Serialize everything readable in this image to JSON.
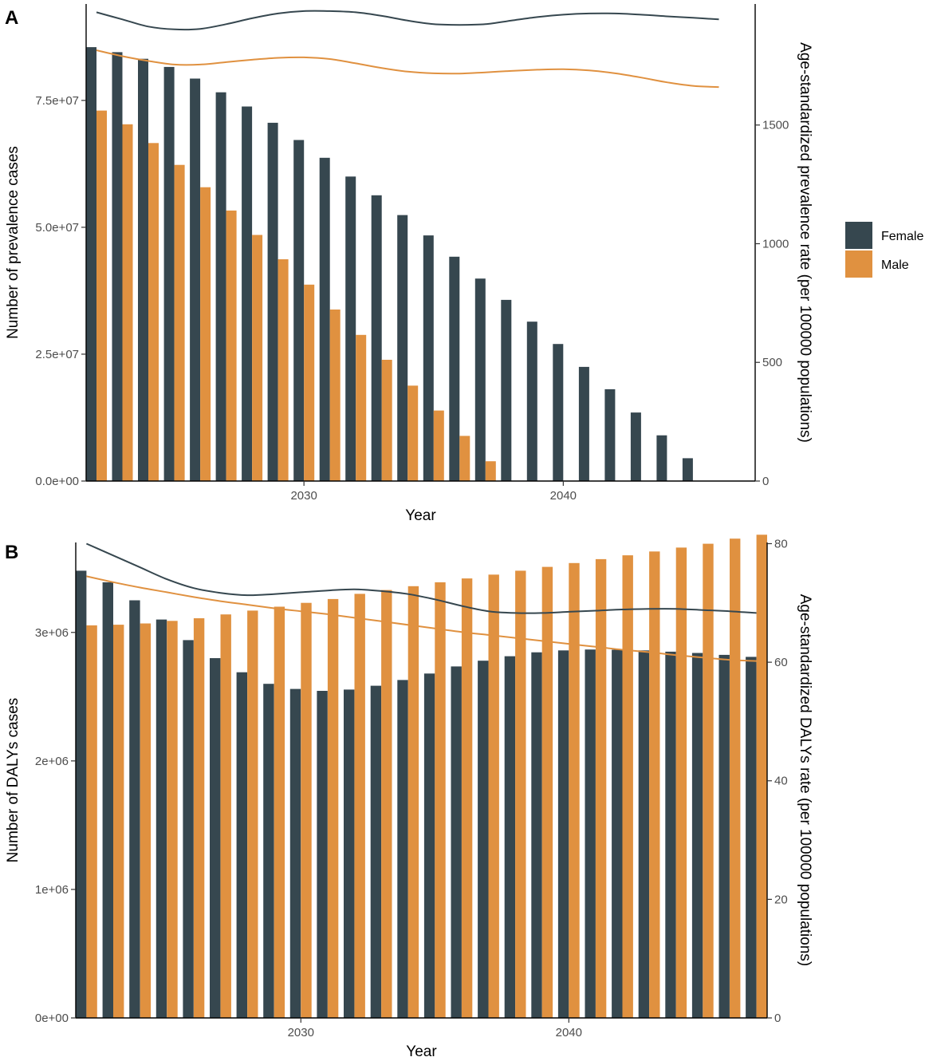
{
  "colors": {
    "female": "#36474f",
    "male": "#e09140"
  },
  "legend": {
    "items": [
      "Female",
      "Male"
    ]
  },
  "chart_data": [
    {
      "panel": "A",
      "type": "bar+line",
      "xlabel": "Year",
      "ylabel_left": "Number of prevalence cases",
      "ylabel_right": "Age-standardized prevalence rate (per 100000 populations)",
      "x_ticks": [
        2030,
        2040
      ],
      "y_left_ticks": [
        "0.0e+00",
        "2.5e+07",
        "5.0e+07",
        "7.5e+07"
      ],
      "y_left_tick_values": [
        0,
        25000000,
        50000000,
        75000000
      ],
      "y_right_ticks": [
        "0",
        "500",
        "1000",
        "1500"
      ],
      "y_right_tick_values": [
        0,
        500,
        1000,
        1500
      ],
      "xlim": [
        2021.6,
        2047.4
      ],
      "ylim_left": [
        0,
        94000000
      ],
      "ylim_right": [
        0,
        2010
      ],
      "bar_series": [
        {
          "name": "Female",
          "x": [
            2022,
            2023,
            2024,
            2025,
            2026,
            2027,
            2028,
            2029,
            2030,
            2031,
            2032,
            2033,
            2034,
            2035,
            2036,
            2037,
            2038,
            2039,
            2040,
            2041,
            2042,
            2043,
            2044,
            2045
          ],
          "values": [
            85500000,
            84500000,
            83200000,
            81600000,
            79300000,
            76600000,
            73800000,
            70600000,
            67200000,
            63700000,
            60000000,
            56300000,
            52400000,
            48400000,
            44200000,
            39900000,
            35700000,
            31400000,
            27000000,
            22500000,
            18100000,
            13500000,
            9000000,
            4500000
          ]
        },
        {
          "name": "Male",
          "x": [
            2022,
            2023,
            2024,
            2025,
            2026,
            2027,
            2028,
            2029,
            2030,
            2031,
            2032,
            2033,
            2034,
            2035,
            2036,
            2037
          ],
          "values": [
            73000000,
            70300000,
            66600000,
            62300000,
            57900000,
            53300000,
            48500000,
            43700000,
            38700000,
            33800000,
            28800000,
            23900000,
            18800000,
            13900000,
            8900000,
            3900000
          ]
        }
      ],
      "line_series": [
        {
          "name": "Female",
          "x": [
            2022,
            2023,
            2024,
            2025,
            2026,
            2027,
            2028,
            2029,
            2030,
            2031,
            2032,
            2033,
            2034,
            2035,
            2036,
            2037,
            2038,
            2039,
            2040,
            2041,
            2042,
            2043,
            2044,
            2045,
            2046
          ],
          "values": [
            1975,
            1945,
            1915,
            1903,
            1905,
            1925,
            1950,
            1970,
            1980,
            1980,
            1975,
            1960,
            1940,
            1925,
            1922,
            1925,
            1940,
            1955,
            1965,
            1970,
            1970,
            1965,
            1958,
            1952,
            1945
          ]
        },
        {
          "name": "Male",
          "x": [
            2022,
            2023,
            2024,
            2025,
            2026,
            2027,
            2028,
            2029,
            2030,
            2031,
            2032,
            2033,
            2034,
            2035,
            2036,
            2037,
            2038,
            2039,
            2040,
            2041,
            2042,
            2043,
            2044,
            2045,
            2046
          ],
          "values": [
            1815,
            1790,
            1770,
            1755,
            1755,
            1765,
            1775,
            1783,
            1785,
            1778,
            1760,
            1740,
            1725,
            1718,
            1717,
            1722,
            1728,
            1733,
            1735,
            1730,
            1718,
            1700,
            1680,
            1665,
            1660
          ]
        }
      ]
    },
    {
      "panel": "B",
      "type": "bar+line",
      "xlabel": "Year",
      "ylabel_left": "Number of DALYs cases",
      "ylabel_right": "Age-standardized DALYs rate (per 100000 populations)",
      "x_ticks": [
        2030,
        2040
      ],
      "y_left_ticks": [
        "0e+00",
        "1e+06",
        "2e+06",
        "3e+06"
      ],
      "y_left_tick_values": [
        0,
        1000000,
        2000000,
        3000000
      ],
      "y_right_ticks": [
        "0",
        "20",
        "40",
        "60",
        "80"
      ],
      "y_right_tick_values": [
        0,
        20,
        40,
        60,
        80
      ],
      "xlim": [
        2021.6,
        2047.4
      ],
      "ylim_left": [
        0,
        3700000
      ],
      "ylim_right": [
        0,
        80.2
      ],
      "bar_series": [
        {
          "name": "Female",
          "x": [
            2022,
            2023,
            2024,
            2025,
            2026,
            2027,
            2028,
            2029,
            2030,
            2031,
            2032,
            2033,
            2034,
            2035,
            2036,
            2037,
            2038,
            2039,
            2040,
            2041,
            2042,
            2043,
            2044,
            2045,
            2046,
            2047
          ],
          "values": [
            3480000,
            3390000,
            3250000,
            3100000,
            2940000,
            2800000,
            2690000,
            2600000,
            2560000,
            2545000,
            2555000,
            2585000,
            2630000,
            2680000,
            2735000,
            2780000,
            2815000,
            2845000,
            2860000,
            2867000,
            2865000,
            2860000,
            2850000,
            2840000,
            2825000,
            2810000
          ]
        },
        {
          "name": "Male",
          "x": [
            2022,
            2023,
            2024,
            2025,
            2026,
            2027,
            2028,
            2029,
            2030,
            2031,
            2032,
            2033,
            2034,
            2035,
            2036,
            2037,
            2038,
            2039,
            2040,
            2041,
            2042,
            2043,
            2044,
            2045,
            2046,
            2047
          ],
          "values": [
            3055000,
            3060000,
            3070000,
            3090000,
            3110000,
            3140000,
            3170000,
            3200000,
            3230000,
            3260000,
            3300000,
            3330000,
            3360000,
            3390000,
            3420000,
            3450000,
            3480000,
            3510000,
            3540000,
            3570000,
            3600000,
            3630000,
            3660000,
            3690000,
            3730000,
            3760000
          ]
        }
      ],
      "line_series": [
        {
          "name": "Female",
          "x": [
            2022,
            2023,
            2024,
            2025,
            2026,
            2027,
            2028,
            2029,
            2030,
            2031,
            2032,
            2033,
            2034,
            2035,
            2036,
            2037,
            2038,
            2039,
            2040,
            2041,
            2042,
            2043,
            2044,
            2045,
            2046,
            2047
          ],
          "values": [
            80,
            78,
            76,
            74,
            72.5,
            71.7,
            71.3,
            71.5,
            71.8,
            72.1,
            72.3,
            72,
            71.5,
            70.6,
            69.5,
            68.6,
            68.3,
            68.3,
            68.5,
            68.7,
            68.9,
            69,
            69,
            68.8,
            68.6,
            68.3
          ]
        },
        {
          "name": "Male",
          "x": [
            2022,
            2023,
            2024,
            2025,
            2026,
            2027,
            2028,
            2029,
            2030,
            2031,
            2032,
            2033,
            2034,
            2035,
            2036,
            2037,
            2038,
            2039,
            2040,
            2041,
            2042,
            2043,
            2044,
            2045,
            2046,
            2047
          ],
          "values": [
            74.5,
            73.5,
            72.6,
            71.8,
            71,
            70.3,
            69.7,
            69.1,
            68.6,
            68.1,
            67.5,
            66.9,
            66.3,
            65.7,
            65.1,
            64.6,
            64.1,
            63.6,
            63.1,
            62.6,
            62.1,
            61.7,
            61.2,
            60.8,
            60.4,
            60.2
          ]
        }
      ]
    }
  ]
}
